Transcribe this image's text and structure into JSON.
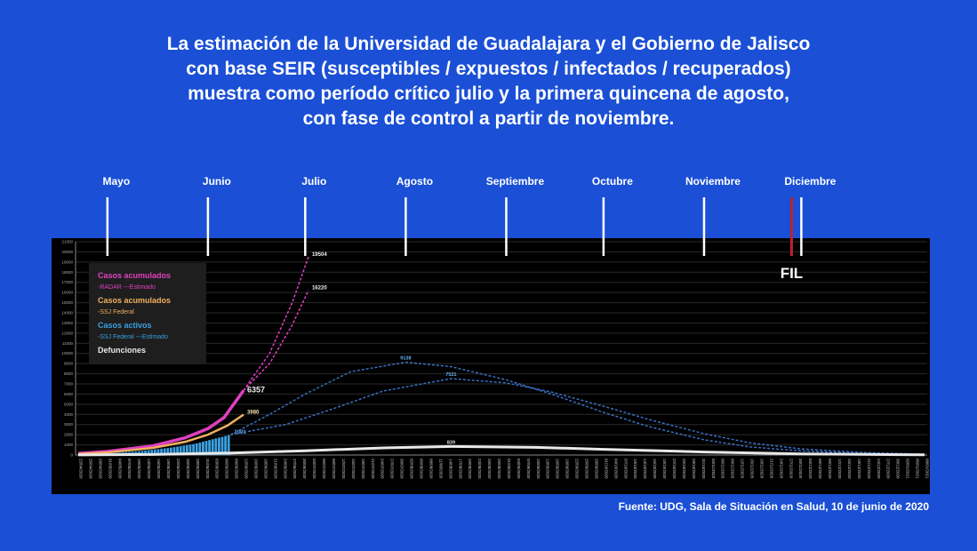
{
  "title_lines": [
    "La estimación de la Universidad de Guadalajara y el Gobierno de Jalisco",
    "con base SEIR (susceptibles / expuestos / infectados / recuperados)",
    "muestra como período crítico julio y la primera quincena de agosto,",
    "con fase de control a partir de noviembre."
  ],
  "source": "Fuente: UDG, Sala de Situación en Salud, 10 de junio de 2020",
  "colors": {
    "background": "#1a4fd6",
    "plot_bg": "#000000",
    "radar": "#e040c0",
    "ssj": "#f0b060",
    "active": "#3aa0e0",
    "deaths": "#e8e8e8",
    "fil": "#c0202a"
  },
  "chart_data": {
    "type": "line",
    "title": "",
    "xlabel": "",
    "ylabel": "",
    "xlim": [
      "2020-04-22",
      "2021-01-08"
    ],
    "ylim": [
      0,
      21000
    ],
    "grid": true,
    "legend_placement": "top-left",
    "y_ticks": [
      0,
      1000,
      2000,
      3000,
      4000,
      5000,
      6000,
      7000,
      8000,
      9000,
      10000,
      11000,
      12000,
      13000,
      14000,
      15000,
      16000,
      17000,
      18000,
      19000,
      20000,
      21000
    ],
    "x_ticks": [
      "22/04/2020",
      "25/04/2020",
      "28/04/2020",
      "01/05/2020",
      "04/05/2020",
      "07/05/2020",
      "10/05/2020",
      "13/05/2020",
      "16/05/2020",
      "19/05/2020",
      "22/05/2020",
      "25/05/2020",
      "28/05/2020",
      "31/05/2020",
      "03/06/2020",
      "06/06/2020",
      "09/06/2020",
      "12/06/2020",
      "15/06/2020",
      "18/06/2020",
      "21/06/2020",
      "24/06/2020",
      "27/06/2020",
      "30/06/2020",
      "03/07/2020",
      "06/07/2020",
      "09/07/2020",
      "12/07/2020",
      "15/07/2020",
      "18/07/2020",
      "21/07/2020",
      "24/07/2020",
      "27/07/2020",
      "30/07/2020",
      "02/08/2020",
      "05/08/2020",
      "08/08/2020",
      "11/08/2020",
      "14/08/2020",
      "17/08/2020",
      "20/08/2020",
      "23/08/2020",
      "26/08/2020",
      "29/08/2020",
      "01/09/2020",
      "04/09/2020",
      "07/09/2020",
      "10/09/2020",
      "13/09/2020",
      "16/09/2020",
      "19/09/2020",
      "22/09/2020",
      "25/09/2020",
      "28/09/2020",
      "01/10/2020",
      "04/10/2020",
      "07/10/2020",
      "10/10/2020",
      "13/10/2020",
      "16/10/2020",
      "19/10/2020",
      "22/10/2020",
      "25/10/2020",
      "28/10/2020",
      "31/10/2020",
      "03/11/2020",
      "06/11/2020",
      "09/11/2020",
      "12/11/2020",
      "15/11/2020",
      "18/11/2020",
      "21/11/2020",
      "24/11/2020",
      "27/11/2020",
      "30/11/2020",
      "03/12/2020",
      "06/12/2020",
      "09/12/2020",
      "12/12/2020",
      "15/12/2020",
      "18/12/2020",
      "21/12/2020",
      "24/12/2020",
      "27/12/2020",
      "30/12/2020",
      "02/01/2021",
      "05/01/2021",
      "08/01/2021"
    ],
    "months": [
      {
        "label": "Mayo",
        "date": "2020-05-01"
      },
      {
        "label": "Junio",
        "date": "2020-06-01"
      },
      {
        "label": "Julio",
        "date": "2020-07-01"
      },
      {
        "label": "Agosto",
        "date": "2020-08-01"
      },
      {
        "label": "Septiembre",
        "date": "2020-09-01"
      },
      {
        "label": "Octubre",
        "date": "2020-10-01"
      },
      {
        "label": "Noviembre",
        "date": "2020-11-01"
      },
      {
        "label": "Diciembre",
        "date": "2020-12-01"
      }
    ],
    "event_marker": {
      "label": "FIL",
      "date": "2020-11-28"
    },
    "legend": [
      {
        "title": "Casos acumulados",
        "sub": "-RADAR ---Estimado",
        "color": "#e040c0"
      },
      {
        "title": "Casos acumulados",
        "sub": "-SSJ Federal",
        "color": "#f0b060"
      },
      {
        "title": "Casos activos",
        "sub": "-SSJ Federal ---Estimado",
        "color": "#3aa0e0"
      },
      {
        "title": "Defunciones",
        "sub": "",
        "color": "#e8e8e8"
      }
    ],
    "series": [
      {
        "key": "radar",
        "style": "solid",
        "color": "#e040c0",
        "label": "6357",
        "points": [
          [
            "2020-04-22",
            150
          ],
          [
            "2020-05-01",
            350
          ],
          [
            "2020-05-15",
            900
          ],
          [
            "2020-05-25",
            1700
          ],
          [
            "2020-06-01",
            2600
          ],
          [
            "2020-06-06",
            3700
          ],
          [
            "2020-06-12",
            6357
          ]
        ]
      },
      {
        "key": "radar_est_high",
        "style": "dashed",
        "color": "#e040c0",
        "label": "19504",
        "points": [
          [
            "2020-06-12",
            6357
          ],
          [
            "2020-06-20",
            10000
          ],
          [
            "2020-06-27",
            15000
          ],
          [
            "2020-07-02",
            19504
          ]
        ]
      },
      {
        "key": "radar_est_low",
        "style": "dashed",
        "color": "#e040c0",
        "label": "16220",
        "points": [
          [
            "2020-06-12",
            6357
          ],
          [
            "2020-06-20",
            9000
          ],
          [
            "2020-06-27",
            12800
          ],
          [
            "2020-07-02",
            16220
          ]
        ]
      },
      {
        "key": "ssj",
        "style": "solid",
        "color": "#f0b060",
        "label": "3980",
        "points": [
          [
            "2020-04-22",
            100
          ],
          [
            "2020-05-01",
            250
          ],
          [
            "2020-05-15",
            700
          ],
          [
            "2020-05-25",
            1300
          ],
          [
            "2020-06-01",
            2000
          ],
          [
            "2020-06-07",
            2900
          ],
          [
            "2020-06-12",
            3980
          ]
        ]
      },
      {
        "key": "active",
        "style": "bars",
        "color": "#3aa0e0",
        "label": "2001",
        "points": [
          [
            "2020-04-22",
            50
          ],
          [
            "2020-05-01",
            150
          ],
          [
            "2020-05-10",
            350
          ],
          [
            "2020-05-20",
            700
          ],
          [
            "2020-05-28",
            1100
          ],
          [
            "2020-06-03",
            1600
          ],
          [
            "2020-06-08",
            2001
          ]
        ]
      },
      {
        "key": "active_est_high",
        "style": "dashed",
        "color": "#3a70c0",
        "label": "9138",
        "points": [
          [
            "2020-06-08",
            2001
          ],
          [
            "2020-06-20",
            4000
          ],
          [
            "2020-07-01",
            6000
          ],
          [
            "2020-07-15",
            8200
          ],
          [
            "2020-08-01",
            9138
          ],
          [
            "2020-08-15",
            8700
          ],
          [
            "2020-09-01",
            7400
          ],
          [
            "2020-09-15",
            6000
          ],
          [
            "2020-10-01",
            4200
          ],
          [
            "2020-10-15",
            2800
          ],
          [
            "2020-11-01",
            1500
          ],
          [
            "2020-11-15",
            800
          ],
          [
            "2020-12-01",
            400
          ],
          [
            "2020-12-20",
            150
          ],
          [
            "2021-01-08",
            50
          ]
        ]
      },
      {
        "key": "active_est_low",
        "style": "dashed",
        "color": "#3a70c0",
        "label": "7521",
        "points": [
          [
            "2020-06-08",
            2001
          ],
          [
            "2020-06-25",
            3000
          ],
          [
            "2020-07-10",
            4600
          ],
          [
            "2020-07-25",
            6300
          ],
          [
            "2020-08-15",
            7521
          ],
          [
            "2020-09-01",
            7100
          ],
          [
            "2020-09-15",
            6200
          ],
          [
            "2020-10-01",
            4800
          ],
          [
            "2020-10-15",
            3500
          ],
          [
            "2020-11-01",
            2100
          ],
          [
            "2020-11-15",
            1200
          ],
          [
            "2020-12-01",
            600
          ],
          [
            "2020-12-20",
            250
          ],
          [
            "2021-01-08",
            80
          ]
        ]
      },
      {
        "key": "deaths",
        "style": "solid",
        "color": "#e8e8e8",
        "label": "839",
        "points": [
          [
            "2020-04-22",
            10
          ],
          [
            "2020-05-15",
            60
          ],
          [
            "2020-06-08",
            200
          ],
          [
            "2020-07-01",
            420
          ],
          [
            "2020-07-25",
            700
          ],
          [
            "2020-08-15",
            839
          ],
          [
            "2020-09-10",
            760
          ],
          [
            "2020-10-01",
            560
          ],
          [
            "2020-11-01",
            300
          ],
          [
            "2020-12-01",
            110
          ],
          [
            "2021-01-08",
            20
          ]
        ]
      }
    ]
  }
}
